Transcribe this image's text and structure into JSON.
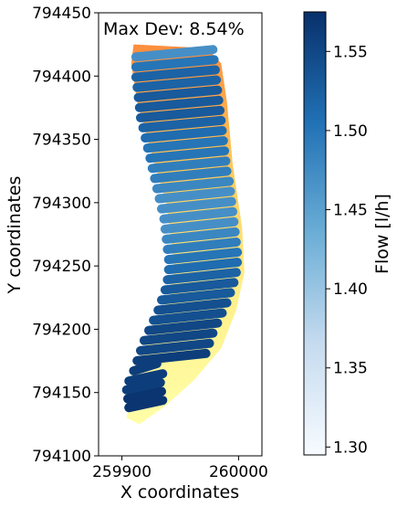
{
  "chart_data": {
    "type": "scatter",
    "annotation": "Max Dev: 8.54%",
    "xlabel": "X coordinates",
    "ylabel": "Y coordinates",
    "xlim": [
      259880,
      260020
    ],
    "ylim": [
      794100,
      794450
    ],
    "x_ticks": [
      259900,
      260000
    ],
    "y_ticks": [
      794100,
      794150,
      794200,
      794250,
      794300,
      794350,
      794400,
      794450
    ],
    "grid": false,
    "colorbar": {
      "label": "Flow [l/h]",
      "min": 1.295,
      "max": 1.575,
      "ticks": [
        1.3,
        1.35,
        1.4,
        1.45,
        1.5,
        1.55
      ],
      "colormap": "Blues",
      "colors": [
        "#f7fbff",
        "#c6dbef",
        "#6baed6",
        "#2171b5",
        "#08306b"
      ]
    },
    "background_field": {
      "description_colors": [
        "#ffffa8",
        "#fecc5c",
        "#fd8d3c"
      ],
      "outline": [
        [
          259910,
          794425
        ],
        [
          259973,
          794422
        ],
        [
          259985,
          794410
        ],
        [
          259990,
          794380
        ],
        [
          259995,
          794330
        ],
        [
          260003,
          794280
        ],
        [
          260005,
          794245
        ],
        [
          259998,
          794215
        ],
        [
          259985,
          794185
        ],
        [
          259962,
          794160
        ],
        [
          259938,
          794140
        ],
        [
          259915,
          794125
        ],
        [
          259904,
          794130
        ],
        [
          259908,
          794165
        ],
        [
          259925,
          794195
        ],
        [
          259940,
          794225
        ],
        [
          259945,
          794250
        ],
        [
          259938,
          794300
        ],
        [
          259925,
          794340
        ],
        [
          259913,
          794380
        ],
        [
          259908,
          794410
        ]
      ]
    },
    "series": [
      {
        "rows": [
          {
            "y": 794418,
            "x_start": 259912,
            "x_end": 259978,
            "value": 1.47
          },
          {
            "y": 794410,
            "x_start": 259912,
            "x_end": 259979,
            "value": 1.5
          },
          {
            "y": 794402,
            "x_start": 259912,
            "x_end": 259980,
            "value": 1.52
          },
          {
            "y": 794394,
            "x_start": 259913,
            "x_end": 259981,
            "value": 1.52
          },
          {
            "y": 794386,
            "x_start": 259914,
            "x_end": 259982,
            "value": 1.53
          },
          {
            "y": 794378,
            "x_start": 259915,
            "x_end": 259983,
            "value": 1.53
          },
          {
            "y": 794370,
            "x_start": 259916,
            "x_end": 259984,
            "value": 1.53
          },
          {
            "y": 794362,
            "x_start": 259918,
            "x_end": 259985,
            "value": 1.52
          },
          {
            "y": 794354,
            "x_start": 259920,
            "x_end": 259986,
            "value": 1.51
          },
          {
            "y": 794346,
            "x_start": 259922,
            "x_end": 259987,
            "value": 1.5
          },
          {
            "y": 794338,
            "x_start": 259924,
            "x_end": 259988,
            "value": 1.5
          },
          {
            "y": 794330,
            "x_start": 259926,
            "x_end": 259989,
            "value": 1.49
          },
          {
            "y": 794322,
            "x_start": 259928,
            "x_end": 259990,
            "value": 1.49
          },
          {
            "y": 794314,
            "x_start": 259930,
            "x_end": 259992,
            "value": 1.48
          },
          {
            "y": 794306,
            "x_start": 259932,
            "x_end": 259993,
            "value": 1.47
          },
          {
            "y": 794298,
            "x_start": 259934,
            "x_end": 259994,
            "value": 1.47
          },
          {
            "y": 794290,
            "x_start": 259936,
            "x_end": 259995,
            "value": 1.47
          },
          {
            "y": 794282,
            "x_start": 259937,
            "x_end": 259996,
            "value": 1.47
          },
          {
            "y": 794274,
            "x_start": 259938,
            "x_end": 259997,
            "value": 1.48
          },
          {
            "y": 794266,
            "x_start": 259939,
            "x_end": 259998,
            "value": 1.49
          },
          {
            "y": 794258,
            "x_start": 259940,
            "x_end": 259999,
            "value": 1.5
          },
          {
            "y": 794250,
            "x_start": 259940,
            "x_end": 259999,
            "value": 1.51
          },
          {
            "y": 794242,
            "x_start": 259939,
            "x_end": 259998,
            "value": 1.52
          },
          {
            "y": 794234,
            "x_start": 259937,
            "x_end": 259996,
            "value": 1.53
          },
          {
            "y": 794226,
            "x_start": 259934,
            "x_end": 259993,
            "value": 1.53
          },
          {
            "y": 794218,
            "x_start": 259931,
            "x_end": 259990,
            "value": 1.54
          },
          {
            "y": 794210,
            "x_start": 259927,
            "x_end": 259986,
            "value": 1.54
          },
          {
            "y": 794202,
            "x_start": 259923,
            "x_end": 259982,
            "value": 1.55
          },
          {
            "y": 794194,
            "x_start": 259919,
            "x_end": 259978,
            "value": 1.55
          },
          {
            "y": 794186,
            "x_start": 259916,
            "x_end": 259975,
            "value": 1.55
          },
          {
            "y": 794178,
            "x_start": 259913,
            "x_end": 259972,
            "value": 1.56
          },
          {
            "y": 794170,
            "x_start": 259910,
            "x_end": 259930,
            "value": 1.56
          },
          {
            "y": 794162,
            "x_start": 259906,
            "x_end": 259935,
            "value": 1.56
          },
          {
            "y": 794155,
            "x_start": 259904,
            "x_end": 259933,
            "value": 1.56
          },
          {
            "y": 794148,
            "x_start": 259905,
            "x_end": 259934,
            "value": 1.57
          },
          {
            "y": 794141,
            "x_start": 259906,
            "x_end": 259935,
            "value": 1.57
          }
        ]
      }
    ]
  }
}
